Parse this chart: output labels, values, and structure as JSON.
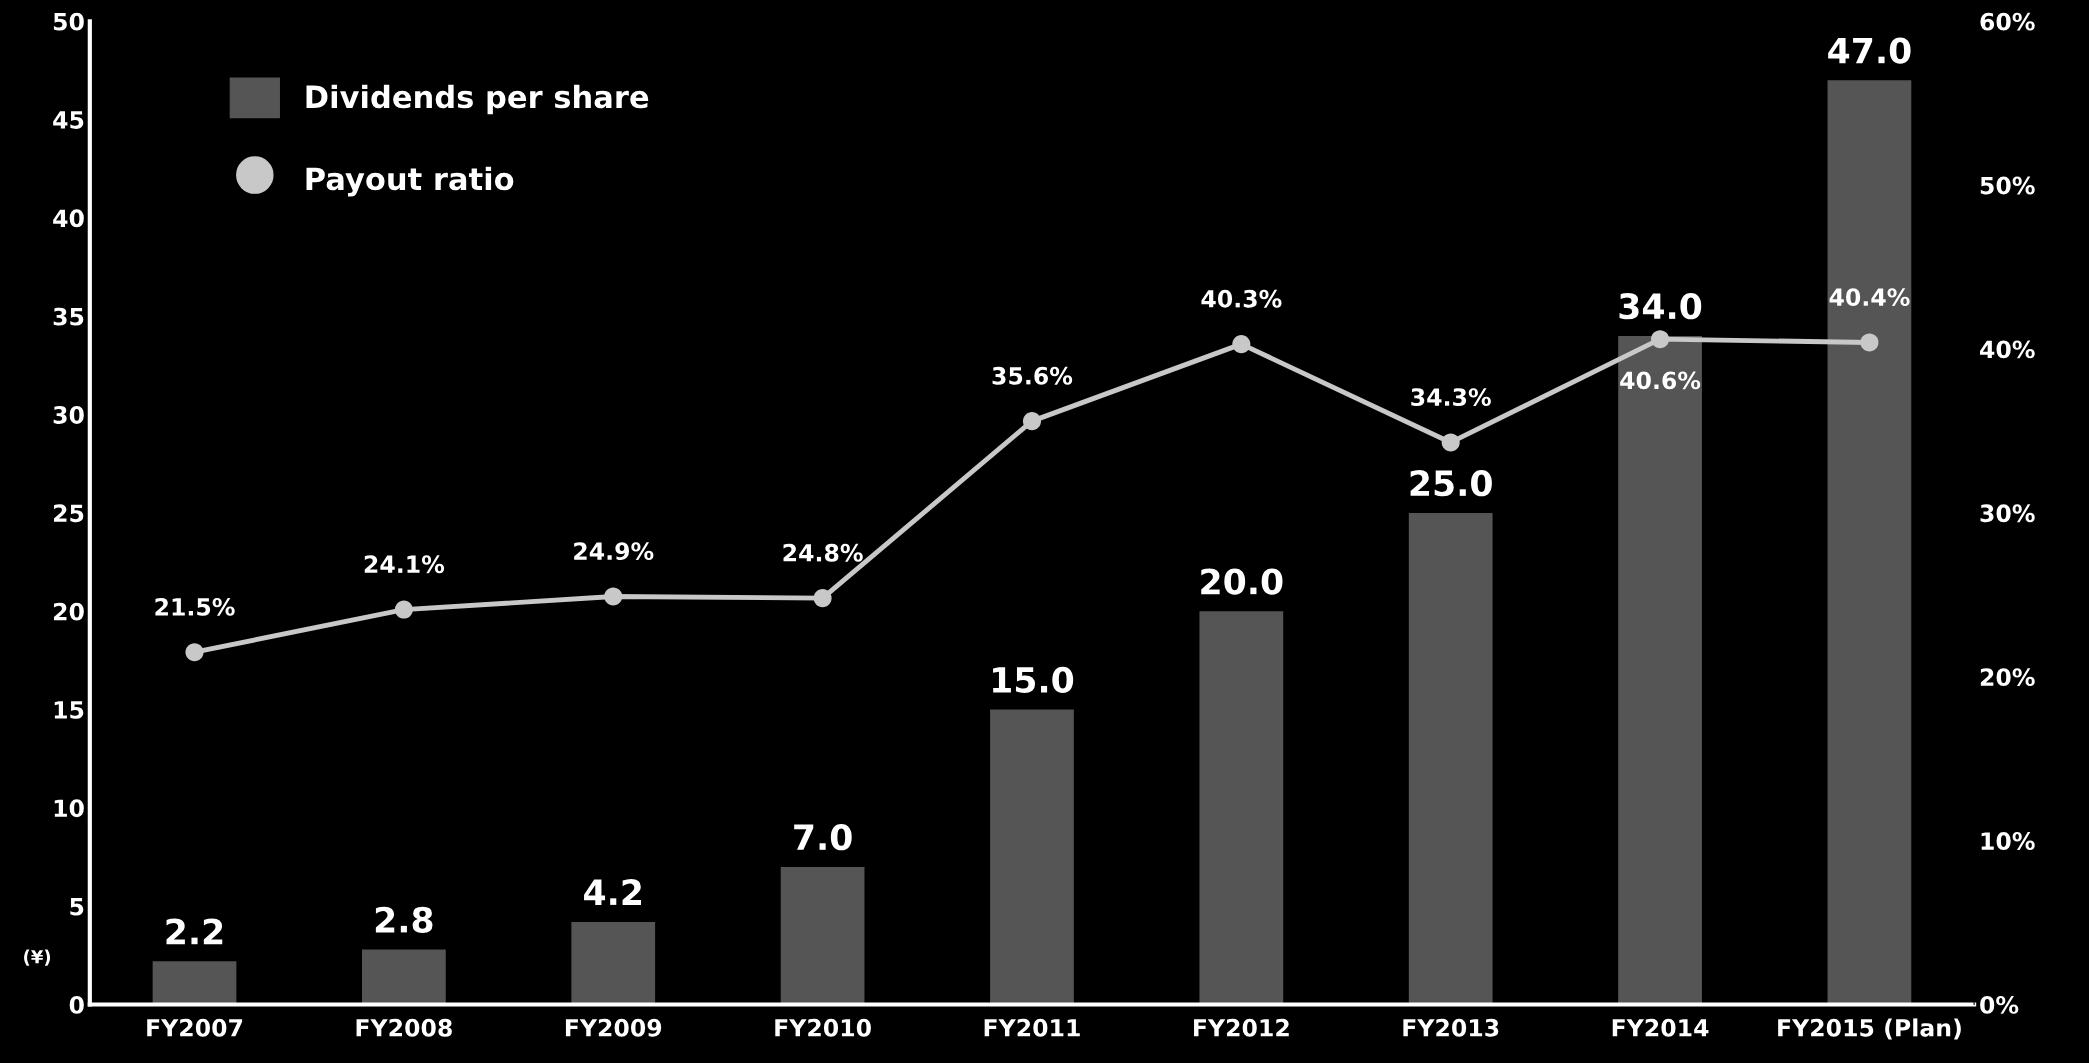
{
  "chart_data": {
    "type": "bar",
    "categories": [
      "FY2007",
      "FY2008",
      "FY2009",
      "FY2010",
      "FY2011",
      "FY2012",
      "FY2013",
      "FY2014",
      "FY2015 (Plan)"
    ],
    "series": [
      {
        "name": "Dividends per share",
        "color": "#555555",
        "values": [
          2.2,
          2.8,
          4.2,
          7.0,
          15.0,
          20.0,
          25.0,
          34.0,
          47.0
        ],
        "value_labels": [
          "2.2",
          "2.8",
          "4.2",
          "7.0",
          "15.0",
          "20.0",
          "25.0",
          "34.0",
          "47.0"
        ]
      },
      {
        "name": "Payout ratio",
        "type": "line",
        "axis": "y2",
        "color": "#c8c8c8",
        "marker": "circle",
        "values": [
          21.5,
          24.1,
          24.9,
          24.8,
          35.6,
          40.3,
          34.3,
          40.6,
          40.4
        ],
        "value_labels": [
          "21.5%",
          "24.1%",
          "24.9%",
          "24.8%",
          "35.6%",
          "40.3%",
          "34.3%",
          "40.6%",
          "40.4%"
        ]
      }
    ],
    "ylim": [
      0,
      50
    ],
    "yticks": [
      0,
      5,
      10,
      15,
      20,
      25,
      30,
      35,
      40,
      45,
      50
    ],
    "y2lim": [
      0,
      60
    ],
    "y2ticks": [
      {
        "value": 0,
        "label": "0%"
      },
      {
        "value": 10,
        "label": "10%"
      },
      {
        "value": 20,
        "label": "20%"
      },
      {
        "value": 30,
        "label": "30%"
      },
      {
        "value": 40,
        "label": "40%"
      },
      {
        "value": 50,
        "label": "50%"
      },
      {
        "value": 60,
        "label": "60%"
      }
    ],
    "annotations": [
      "(¥)"
    ],
    "legend": "top left",
    "grid": false
  }
}
